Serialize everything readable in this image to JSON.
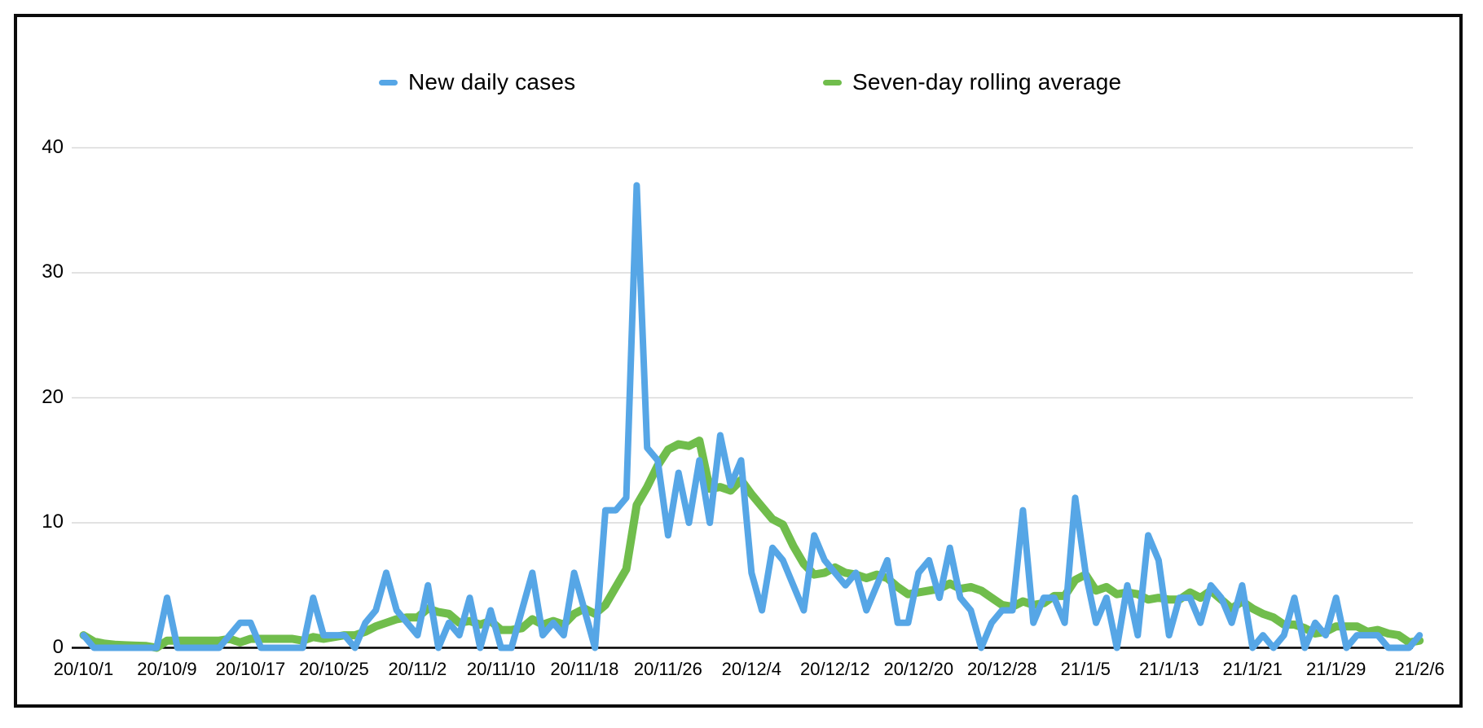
{
  "legend": [
    {
      "label": "New daily cases",
      "color": "#56a6e6"
    },
    {
      "label": "Seven-day rolling average",
      "color": "#70bd4c"
    }
  ],
  "chart_data": {
    "type": "line",
    "title": "",
    "xlabel": "",
    "ylabel": "",
    "x_start_date": "20/10/1",
    "x_end_date": "21/2/6",
    "x_tick_interval_days": 8,
    "x_tick_labels": [
      "20/10/1",
      "20/10/9",
      "20/10/17",
      "20/10/25",
      "20/11/2",
      "20/11/10",
      "20/11/18",
      "20/11/26",
      "20/12/4",
      "20/12/12",
      "20/12/20",
      "20/12/28",
      "21/1/5",
      "21/1/13",
      "21/1/21",
      "21/1/29",
      "21/2/6"
    ],
    "y_ticks": [
      0,
      10,
      20,
      30,
      40
    ],
    "ylim": [
      0,
      46
    ],
    "grid": "horizontal",
    "legend_position": "top",
    "series": [
      {
        "name": "New daily cases",
        "color": "#56a6e6",
        "values": [
          1,
          0,
          0,
          0,
          0,
          0,
          0,
          0,
          4,
          0,
          0,
          0,
          0,
          0,
          1,
          2,
          2,
          0,
          0,
          0,
          0,
          0,
          4,
          1,
          1,
          1,
          0,
          2,
          3,
          6,
          3,
          2,
          1,
          5,
          0,
          2,
          1,
          4,
          0,
          3,
          0,
          0,
          3,
          6,
          1,
          2,
          1,
          6,
          3,
          0,
          11,
          11,
          12,
          37,
          16,
          15,
          9,
          14,
          10,
          15,
          10,
          17,
          13,
          15,
          6,
          3,
          8,
          7,
          5,
          3,
          9,
          7,
          6,
          5,
          6,
          3,
          5,
          7,
          2,
          2,
          6,
          7,
          4,
          8,
          4,
          3,
          0,
          2,
          3,
          3,
          11,
          2,
          4,
          4,
          2,
          12,
          6,
          2,
          4,
          0,
          5,
          1,
          9,
          7,
          1,
          4,
          4,
          2,
          5,
          4,
          2,
          5,
          0,
          1,
          0,
          1,
          4,
          0,
          2,
          1,
          4,
          0,
          1,
          1,
          1,
          0,
          0,
          0,
          1
        ]
      },
      {
        "name": "Seven-day rolling average",
        "color": "#70bd4c",
        "derived": "trailing 7-day rolling mean of New daily cases (partial window at series start)",
        "values": null
      }
    ]
  }
}
